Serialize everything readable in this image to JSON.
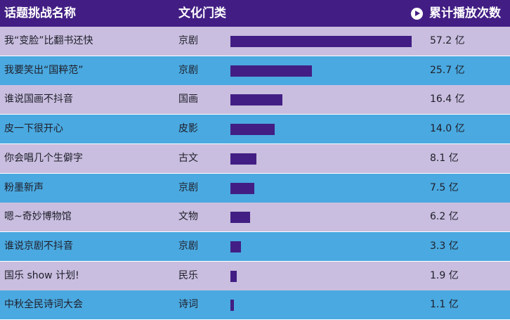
{
  "header": {
    "name_label": "话题挑战名称",
    "category_label": "文化门类",
    "plays_label": "累计播放次数",
    "play_icon": "play-circle-icon"
  },
  "colors": {
    "header_bg": "#421e84",
    "row_odd": "#c9bedf",
    "row_even": "#4aa9e0",
    "bar": "#421e84"
  },
  "chart_data": {
    "type": "bar",
    "orientation": "horizontal",
    "categories": [
      "我“变脸”比翻书还快",
      "我要笑出“国粹范”",
      "谁说国画不抖音",
      "皮一下很开心",
      "你会唱几个生僻字",
      "粉墨新声",
      "嗯~奇妙博物馆",
      "谁说京剧不抖音",
      "国乐 show 计划!",
      "中秋全民诗词大会"
    ],
    "genres": [
      "京剧",
      "京剧",
      "国画",
      "皮影",
      "古文",
      "京剧",
      "文物",
      "京剧",
      "民乐",
      "诗词"
    ],
    "values": [
      57.2,
      25.7,
      16.4,
      14.0,
      8.1,
      7.5,
      6.2,
      3.3,
      1.9,
      1.1
    ],
    "value_labels": [
      "57.2 亿",
      "25.7 亿",
      "16.4 亿",
      "14.0 亿",
      "8.1 亿",
      "7.5 亿",
      "6.2 亿",
      "3.3 亿",
      "1.9 亿",
      "1.1 亿"
    ],
    "unit": "亿",
    "xlim": [
      0,
      57.2
    ]
  }
}
